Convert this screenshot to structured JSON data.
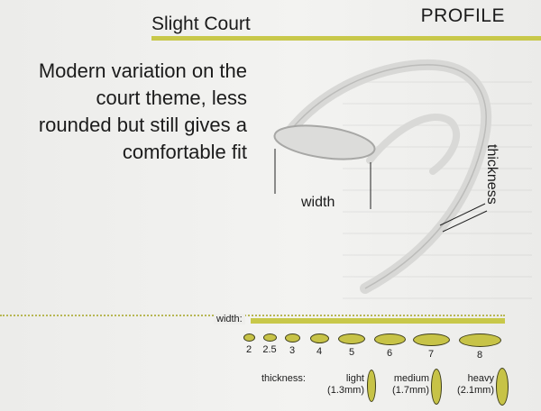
{
  "header": {
    "title": "Slight Court",
    "section": "PROFILE"
  },
  "description": {
    "lines": [
      "Modern variation on the",
      "court theme, less",
      "rounded but still gives a",
      "comfortable fit"
    ]
  },
  "diagram": {
    "width_label": "width",
    "thickness_label": "thickness"
  },
  "width_scale": {
    "label": "width:",
    "sizes": [
      {
        "label": "2"
      },
      {
        "label": "2.5"
      },
      {
        "label": "3"
      },
      {
        "label": "4"
      },
      {
        "label": "5"
      },
      {
        "label": "6"
      },
      {
        "label": "7"
      },
      {
        "label": "8"
      }
    ]
  },
  "thickness_scale": {
    "label": "thickness:",
    "items": [
      {
        "name": "light",
        "value": "(1.3mm)"
      },
      {
        "name": "medium",
        "value": "(1.7mm)"
      },
      {
        "name": "heavy",
        "value": "(2.1mm)"
      }
    ]
  },
  "colors": {
    "accent": "#c8c84a",
    "text": "#1b1b1b"
  }
}
